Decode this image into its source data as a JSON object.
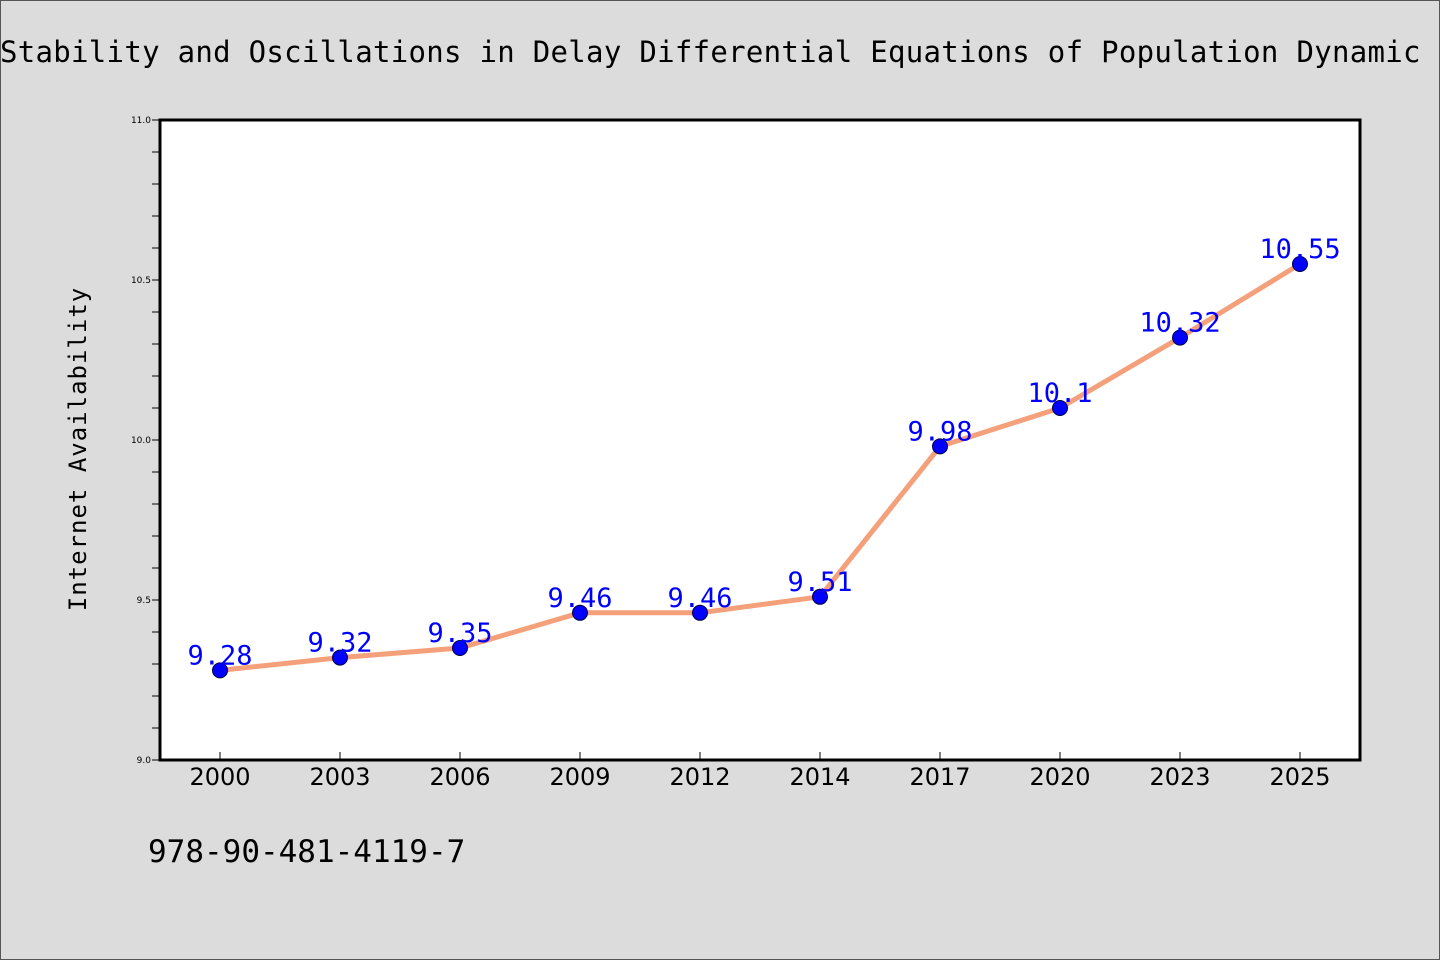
{
  "chart_data": {
    "type": "line",
    "title": "Stability and Oscillations in Delay Differential Equations of Population Dynamic",
    "xlabel": "",
    "ylabel": "Internet Availability",
    "categories": [
      "2000",
      "2003",
      "2006",
      "2009",
      "2012",
      "2014",
      "2017",
      "2020",
      "2023",
      "2025"
    ],
    "series": [
      {
        "values": [
          9.28,
          9.32,
          9.35,
          9.46,
          9.46,
          9.51,
          9.98,
          10.1,
          10.32,
          10.55
        ],
        "data_labels": [
          "9.28",
          "9.32",
          "9.35",
          "9.46",
          "9.46",
          "9.51",
          "9.98",
          "10.1",
          "10.32",
          "10.55"
        ],
        "line_color": "#f4a07a",
        "marker_color": "#0000ff"
      }
    ],
    "ylim": [
      9.0,
      11.0
    ],
    "yticks": [
      "9.0",
      "9.5",
      "10.0",
      "10.5",
      "11.0"
    ],
    "grid": false,
    "legend": "none"
  },
  "footer": {
    "isbn": "978-90-481-4119-7"
  },
  "colors": {
    "background": "#dcdcdc",
    "plot_background": "#ffffff",
    "line": "#f4a07a",
    "marker": "#0000ff",
    "data_label": "#0000ff"
  }
}
